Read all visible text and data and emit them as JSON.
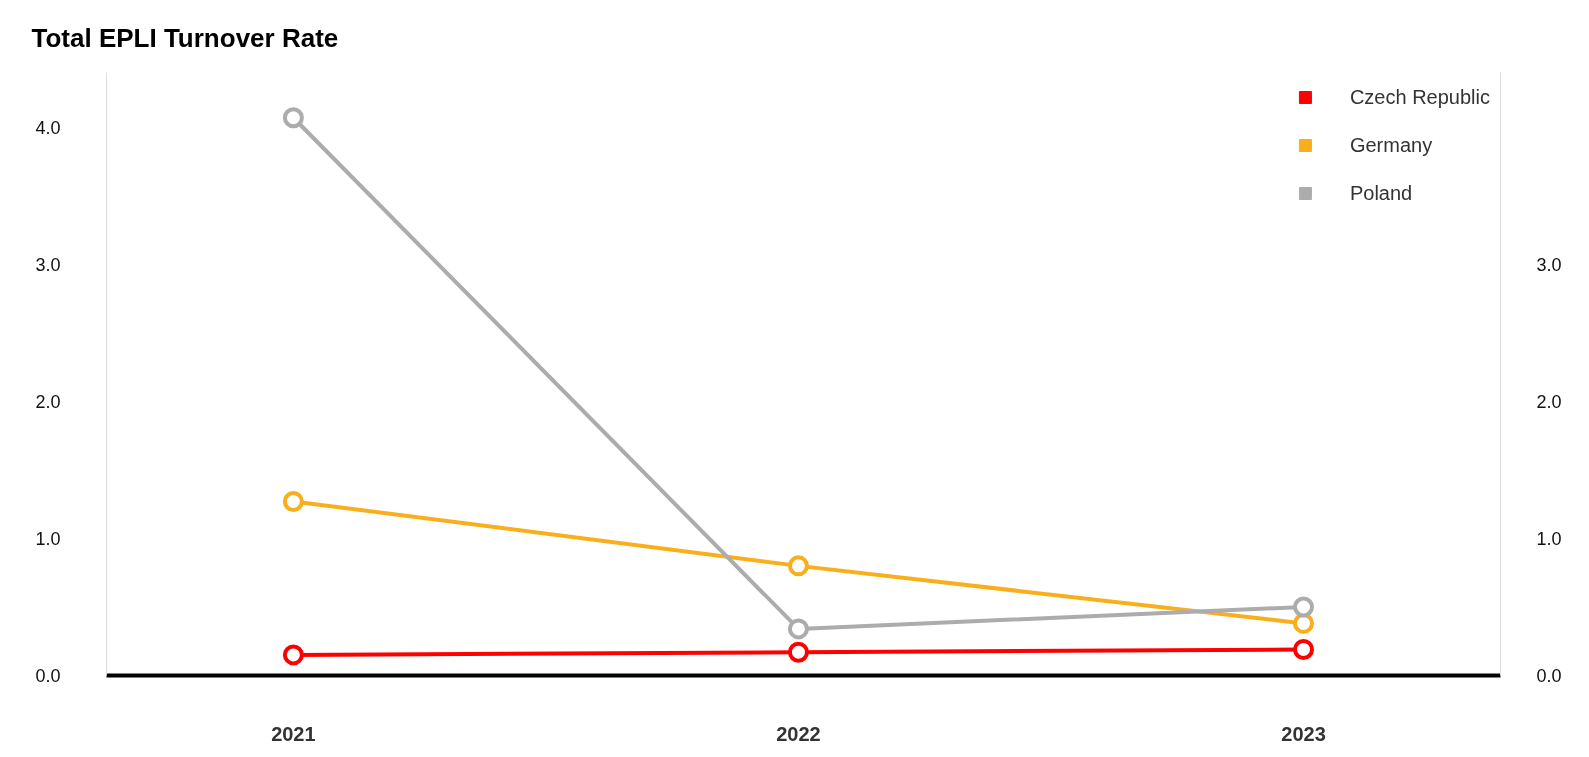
{
  "chart_data": {
    "type": "line",
    "title": "Total EPLI Turnover Rate",
    "categories": [
      "2021",
      "2022",
      "2023"
    ],
    "series": [
      {
        "name": "Czech Republic",
        "color": "#ff0000",
        "values": [
          0.15,
          0.17,
          0.19
        ]
      },
      {
        "name": "Germany",
        "color": "#f9ae1b",
        "values": [
          1.27,
          0.8,
          0.38
        ]
      },
      {
        "name": "Poland",
        "color": "#acacac",
        "values": [
          4.07,
          0.34,
          0.5
        ]
      }
    ],
    "ylim": [
      0,
      4.4
    ],
    "yticks": [
      {
        "value": 0,
        "label": "0.0"
      },
      {
        "value": 1,
        "label": "1.0"
      },
      {
        "value": 2,
        "label": "2.0"
      },
      {
        "value": 3,
        "label": "3.0"
      },
      {
        "value": 4,
        "label": "4.0"
      }
    ],
    "y2lim": [
      0,
      4.4
    ],
    "y2ticks": [
      {
        "value": 0,
        "label": "0.0"
      },
      {
        "value": 1,
        "label": "1.0"
      },
      {
        "value": 2,
        "label": "2.0"
      },
      {
        "value": 3,
        "label": "3.0"
      }
    ],
    "grid": false,
    "legend": "top right",
    "marker": "circle",
    "line_style": "solid"
  }
}
